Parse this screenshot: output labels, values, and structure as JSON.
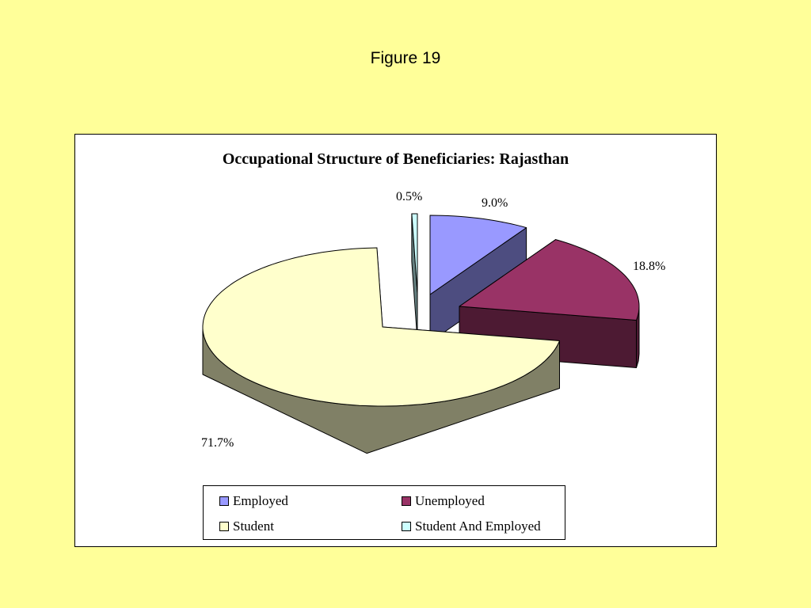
{
  "figure_title": "Figure 19",
  "chart_data": {
    "type": "pie",
    "style": "3d-exploded",
    "title": "Occupational Structure of Beneficiaries: Rajasthan",
    "slices": [
      {
        "name": "Employed",
        "value": 9.0,
        "label": "9.0%",
        "color": "#9999FF",
        "side_color": "#4D4D80"
      },
      {
        "name": "Unemployed",
        "value": 18.8,
        "label": "18.8%",
        "color": "#993366",
        "side_color": "#4D1A33"
      },
      {
        "name": "Student",
        "value": 71.7,
        "label": "71.7%",
        "color": "#FFFFCC",
        "side_color": "#808066"
      },
      {
        "name": "Student And Employed",
        "value": 0.5,
        "label": "0.5%",
        "color": "#CCFFFF",
        "side_color": "#668080"
      }
    ],
    "legend_position": "bottom"
  }
}
